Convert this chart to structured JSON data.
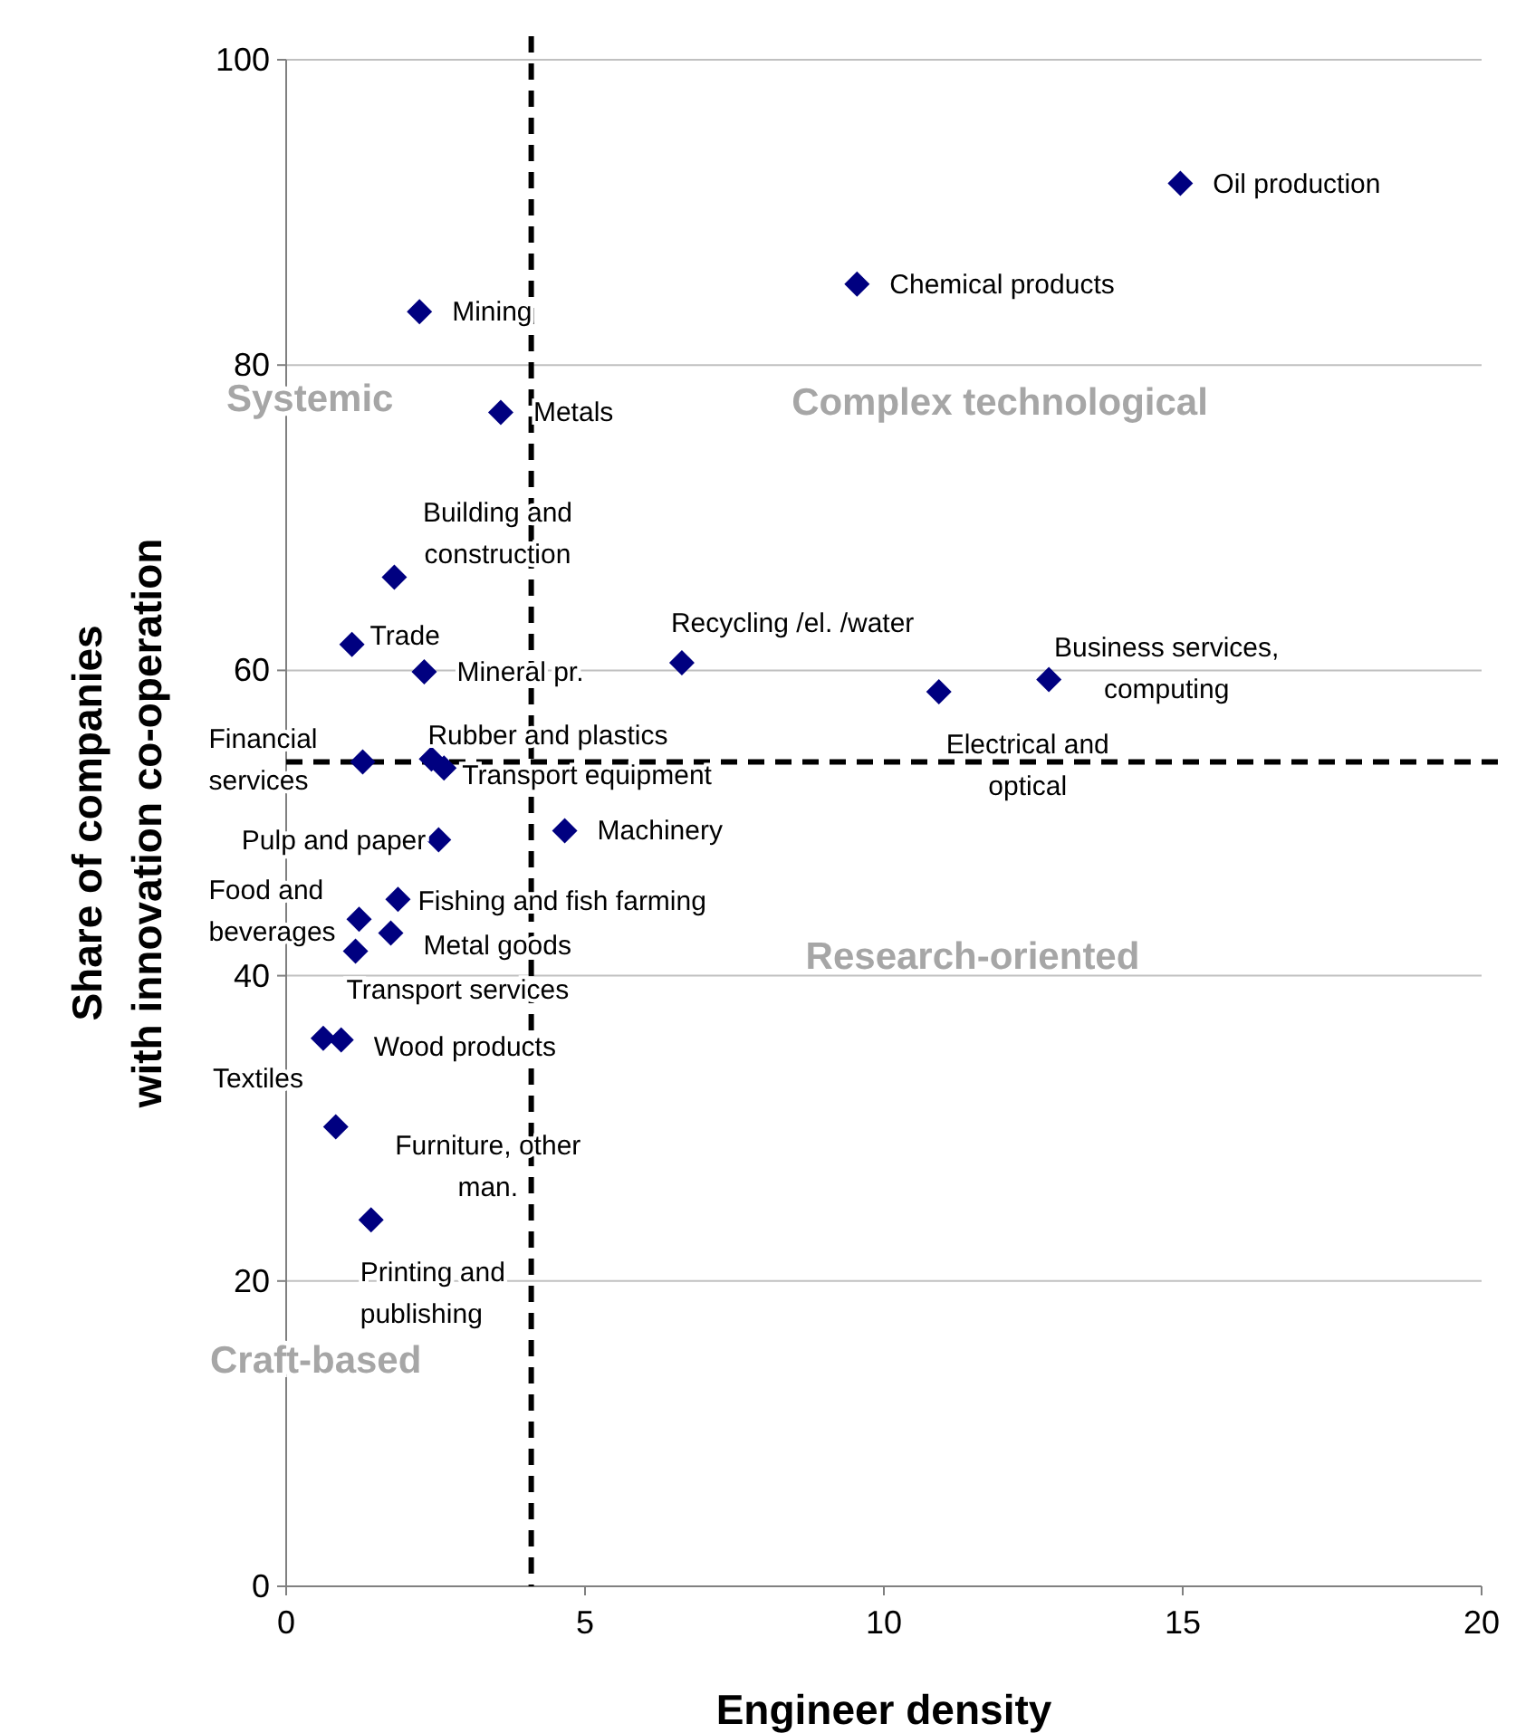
{
  "chart_data": {
    "type": "scatter",
    "xlabel": "Engineer density",
    "ylabel": "Share of companies with innovation co-operation",
    "xlim": [
      0,
      20
    ],
    "ylim": [
      0,
      100
    ],
    "xticks": [
      0,
      5,
      10,
      15,
      20
    ],
    "yticks": [
      0,
      20,
      40,
      60,
      80,
      100
    ],
    "grid": "y",
    "marker": "diamond",
    "series": [
      {
        "color": "#000080",
        "x": [
          14.96,
          9.55,
          2.23,
          3.59,
          1.81,
          1.1,
          2.31,
          6.62,
          12.76,
          10.92,
          1.28,
          2.43,
          2.64,
          4.66,
          2.55,
          1.87,
          1.22,
          1.75,
          1.16,
          0.62,
          0.92,
          0.83,
          1.42
        ],
        "values": [
          91.9,
          85.3,
          83.5,
          76.9,
          66.1,
          61.7,
          59.9,
          60.5,
          59.4,
          58.6,
          54.0,
          54.2,
          53.6,
          49.5,
          48.9,
          45.0,
          43.7,
          42.8,
          41.6,
          35.9,
          35.8,
          30.1,
          24.0
        ]
      }
    ],
    "ref_lines": [
      {
        "axis": "x",
        "value": 4.1,
        "line_style": "dashed",
        "color": "#000000"
      },
      {
        "axis": "y",
        "value": 54,
        "line_style": "dashed",
        "color": "#000000"
      }
    ],
    "annotations": [
      {
        "text": "Oil production",
        "x": 14.96,
        "y": 91.9
      },
      {
        "text": "Chemical products",
        "x": 9.55,
        "y": 85.3
      },
      {
        "text": "Mining",
        "x": 2.23,
        "y": 83.5
      },
      {
        "text": "Metals",
        "x": 3.59,
        "y": 76.9
      },
      {
        "text": "Building and construction",
        "x": 1.81,
        "y": 66.1
      },
      {
        "text": "Trade",
        "x": 1.1,
        "y": 61.7
      },
      {
        "text": "Mineral pr.",
        "x": 2.31,
        "y": 59.9
      },
      {
        "text": "Recycling /el. /water",
        "x": 6.62,
        "y": 60.5
      },
      {
        "text": "Business services, computing",
        "x": 12.76,
        "y": 59.4
      },
      {
        "text": "Electrical and optical",
        "x": 10.92,
        "y": 58.6
      },
      {
        "text": "Financial services",
        "x": 1.28,
        "y": 54.0
      },
      {
        "text": "Rubber and plastics",
        "x": 2.43,
        "y": 54.2
      },
      {
        "text": "Transport equipment",
        "x": 2.64,
        "y": 53.6
      },
      {
        "text": "Machinery",
        "x": 4.66,
        "y": 49.5
      },
      {
        "text": "Pulp and paper",
        "x": 2.55,
        "y": 48.9
      },
      {
        "text": "Fishing and fish farming",
        "x": 1.87,
        "y": 45.0
      },
      {
        "text": "Food and beverages",
        "x": 1.22,
        "y": 43.7
      },
      {
        "text": "Metal goods",
        "x": 1.75,
        "y": 42.8
      },
      {
        "text": "Transport services",
        "x": 1.16,
        "y": 41.6
      },
      {
        "text": "Textiles",
        "x": 0.62,
        "y": 35.9
      },
      {
        "text": "Wood products",
        "x": 0.92,
        "y": 35.8
      },
      {
        "text": "Furniture, other man.",
        "x": 0.83,
        "y": 30.1
      },
      {
        "text": "Printing and publishing",
        "x": 1.42,
        "y": 24.0
      },
      "Systemic",
      "Complex technological",
      "Research-oriented",
      "Craft-based"
    ]
  }
}
